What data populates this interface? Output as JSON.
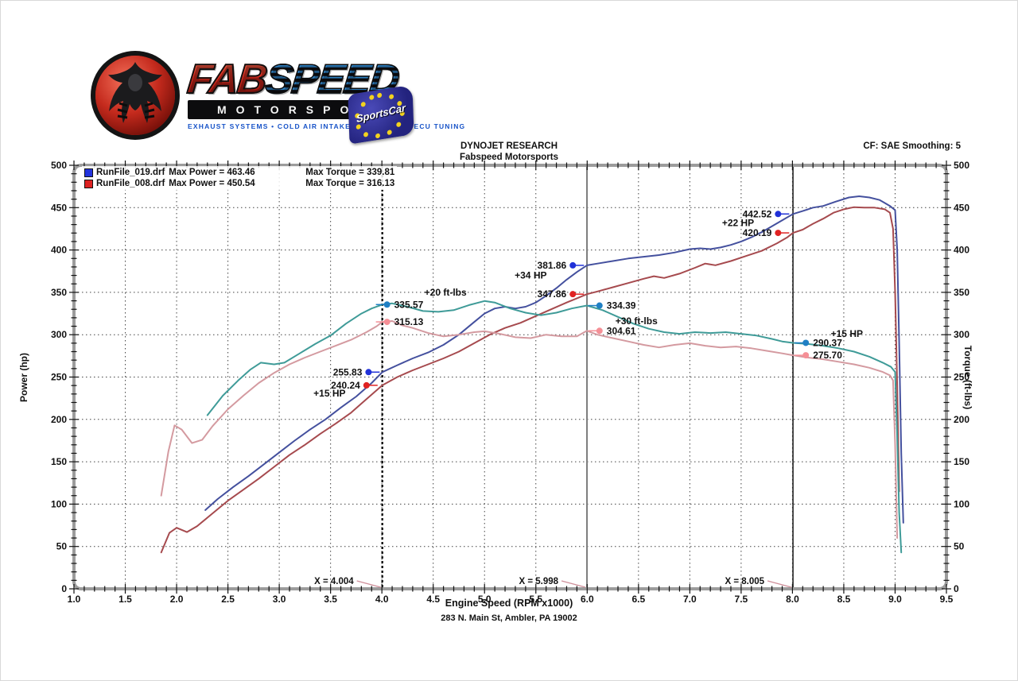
{
  "logo": {
    "fab": "FAB",
    "speed": "SPEED",
    "motorsport": "MOTORSPORT",
    "tagline": "EXHAUST SYSTEMS  •  COLD AIR INTAKES  •  HEADERS  •  ECU TUNING",
    "flag_text": "SportsCar"
  },
  "header": {
    "title": "DYNOJET RESEARCH",
    "subtitle": "Fabspeed Motorsports",
    "correction": "CF: SAE  Smoothing: 5"
  },
  "legend": {
    "rows": [
      {
        "swatch": "#2233dd",
        "file": "RunFile_019.drf",
        "power": "Max Power = 463.46",
        "torque": "Max Torque = 339.81"
      },
      {
        "swatch": "#dd2222",
        "file": "RunFile_008.drf",
        "power": "Max Power = 450.54",
        "torque": "Max Torque = 316.13"
      }
    ]
  },
  "footer": {
    "xlabel": "Engine Speed (RPM x1000)",
    "address": "283 N. Main St, Ambler, PA 19002"
  },
  "chart_data": {
    "type": "line",
    "title": "DYNOJET RESEARCH - Fabspeed Motorsports",
    "xlabel": "Engine Speed (RPM x1000)",
    "ylabel_left": "Power (hp)",
    "ylabel_right": "Torque (ft-lbs)",
    "xlim": [
      1.0,
      9.5
    ],
    "ylim": [
      0,
      500
    ],
    "x_ticks": [
      "1.0",
      "1.5",
      "2.0",
      "2.5",
      "3.0",
      "3.5",
      "4.0",
      "4.5",
      "5.0",
      "5.5",
      "6.0",
      "6.5",
      "7.0",
      "7.5",
      "8.0",
      "8.5",
      "9.0",
      "9.5"
    ],
    "y_ticks": [
      "0",
      "50",
      "100",
      "150",
      "200",
      "250",
      "300",
      "350",
      "400",
      "450",
      "500"
    ],
    "grid": "dotted",
    "legend_position": "top-left",
    "cursors": [
      {
        "x": 4.004,
        "label": "X = 4.004",
        "style": "bold-dashed"
      },
      {
        "x": 5.998,
        "label": "X = 5.998",
        "style": "solid-gray"
      },
      {
        "x": 8.005,
        "label": "X = 8.005",
        "style": "solid-black"
      }
    ],
    "series": [
      {
        "name": "RunFile_019 Power (hp)",
        "color": "#44509e",
        "axis": "hp",
        "max": 463.46,
        "points": [
          [
            2.28,
            93
          ],
          [
            2.4,
            106
          ],
          [
            2.55,
            120
          ],
          [
            2.7,
            133
          ],
          [
            2.85,
            147
          ],
          [
            3.0,
            161
          ],
          [
            3.15,
            175
          ],
          [
            3.3,
            188
          ],
          [
            3.45,
            200
          ],
          [
            3.6,
            214
          ],
          [
            3.75,
            227
          ],
          [
            3.9,
            243
          ],
          [
            4.004,
            255.83
          ],
          [
            4.15,
            264
          ],
          [
            4.3,
            272
          ],
          [
            4.45,
            279
          ],
          [
            4.6,
            288
          ],
          [
            4.75,
            300
          ],
          [
            4.9,
            315
          ],
          [
            5.0,
            325
          ],
          [
            5.1,
            331
          ],
          [
            5.2,
            333
          ],
          [
            5.3,
            331
          ],
          [
            5.4,
            333
          ],
          [
            5.5,
            338
          ],
          [
            5.6,
            346
          ],
          [
            5.7,
            355
          ],
          [
            5.8,
            365
          ],
          [
            5.9,
            374
          ],
          [
            5.998,
            381.86
          ],
          [
            6.1,
            384
          ],
          [
            6.25,
            387
          ],
          [
            6.4,
            390
          ],
          [
            6.55,
            392
          ],
          [
            6.7,
            394
          ],
          [
            6.85,
            397
          ],
          [
            7.0,
            401
          ],
          [
            7.1,
            402
          ],
          [
            7.2,
            401
          ],
          [
            7.3,
            403
          ],
          [
            7.4,
            406
          ],
          [
            7.5,
            410
          ],
          [
            7.6,
            415
          ],
          [
            7.7,
            421
          ],
          [
            7.8,
            428
          ],
          [
            7.9,
            435
          ],
          [
            8.005,
            442.52
          ],
          [
            8.1,
            446
          ],
          [
            8.2,
            450
          ],
          [
            8.3,
            452
          ],
          [
            8.42,
            457
          ],
          [
            8.55,
            462
          ],
          [
            8.65,
            463.46
          ],
          [
            8.75,
            462
          ],
          [
            8.85,
            459
          ],
          [
            8.95,
            452
          ],
          [
            9.0,
            447
          ],
          [
            9.02,
            400
          ],
          [
            9.04,
            290
          ],
          [
            9.06,
            160
          ],
          [
            9.08,
            78
          ]
        ]
      },
      {
        "name": "RunFile_008 Power (hp)",
        "color": "#a64a4e",
        "axis": "hp",
        "max": 450.54,
        "points": [
          [
            1.85,
            43
          ],
          [
            1.93,
            66
          ],
          [
            2.0,
            72
          ],
          [
            2.1,
            67
          ],
          [
            2.2,
            74
          ],
          [
            2.35,
            89
          ],
          [
            2.5,
            104
          ],
          [
            2.65,
            117
          ],
          [
            2.8,
            130
          ],
          [
            2.95,
            144
          ],
          [
            3.1,
            158
          ],
          [
            3.25,
            170
          ],
          [
            3.4,
            183
          ],
          [
            3.55,
            195
          ],
          [
            3.7,
            208
          ],
          [
            3.85,
            224
          ],
          [
            4.004,
            240.24
          ],
          [
            4.15,
            250
          ],
          [
            4.3,
            258
          ],
          [
            4.45,
            265
          ],
          [
            4.6,
            272
          ],
          [
            4.75,
            280
          ],
          [
            4.9,
            290
          ],
          [
            5.05,
            300
          ],
          [
            5.2,
            308
          ],
          [
            5.35,
            314
          ],
          [
            5.5,
            322
          ],
          [
            5.65,
            330
          ],
          [
            5.8,
            338
          ],
          [
            5.9,
            343
          ],
          [
            5.998,
            347.86
          ],
          [
            6.1,
            351
          ],
          [
            6.25,
            356
          ],
          [
            6.4,
            361
          ],
          [
            6.55,
            366
          ],
          [
            6.65,
            369
          ],
          [
            6.75,
            367
          ],
          [
            6.9,
            372
          ],
          [
            7.05,
            379
          ],
          [
            7.15,
            384
          ],
          [
            7.25,
            382
          ],
          [
            7.4,
            387
          ],
          [
            7.55,
            393
          ],
          [
            7.7,
            399
          ],
          [
            7.85,
            408
          ],
          [
            7.95,
            415
          ],
          [
            8.005,
            420.19
          ],
          [
            8.1,
            424
          ],
          [
            8.2,
            431
          ],
          [
            8.3,
            437
          ],
          [
            8.4,
            444
          ],
          [
            8.5,
            448
          ],
          [
            8.6,
            450.54
          ],
          [
            8.7,
            450
          ],
          [
            8.8,
            450
          ],
          [
            8.9,
            448
          ],
          [
            8.95,
            444
          ],
          [
            8.98,
            425
          ],
          [
            9.0,
            350
          ],
          [
            9.02,
            240
          ],
          [
            9.04,
            115
          ]
        ]
      },
      {
        "name": "RunFile_019 Torque (ft-lbs)",
        "color": "#3f9b98",
        "axis": "ft-lbs",
        "max": 339.81,
        "points": [
          [
            2.3,
            205
          ],
          [
            2.45,
            228
          ],
          [
            2.6,
            246
          ],
          [
            2.72,
            259
          ],
          [
            2.82,
            267
          ],
          [
            2.95,
            265
          ],
          [
            3.05,
            267
          ],
          [
            3.2,
            278
          ],
          [
            3.35,
            289
          ],
          [
            3.5,
            299
          ],
          [
            3.65,
            313
          ],
          [
            3.8,
            325
          ],
          [
            3.9,
            331
          ],
          [
            4.004,
            335.57
          ],
          [
            4.1,
            337
          ],
          [
            4.25,
            333
          ],
          [
            4.4,
            328
          ],
          [
            4.55,
            327
          ],
          [
            4.7,
            329
          ],
          [
            4.85,
            335
          ],
          [
            5.0,
            339.81
          ],
          [
            5.1,
            338
          ],
          [
            5.25,
            331
          ],
          [
            5.4,
            326
          ],
          [
            5.55,
            323
          ],
          [
            5.7,
            326
          ],
          [
            5.85,
            331
          ],
          [
            5.998,
            334.39
          ],
          [
            6.15,
            329
          ],
          [
            6.3,
            321
          ],
          [
            6.45,
            313
          ],
          [
            6.6,
            307
          ],
          [
            6.75,
            303
          ],
          [
            6.9,
            301
          ],
          [
            7.05,
            303
          ],
          [
            7.2,
            302
          ],
          [
            7.35,
            303
          ],
          [
            7.5,
            301
          ],
          [
            7.65,
            299
          ],
          [
            7.8,
            295
          ],
          [
            7.9,
            292
          ],
          [
            8.005,
            290.37
          ],
          [
            8.15,
            289
          ],
          [
            8.3,
            287
          ],
          [
            8.45,
            284
          ],
          [
            8.6,
            280
          ],
          [
            8.75,
            274
          ],
          [
            8.88,
            267
          ],
          [
            8.96,
            262
          ],
          [
            9.0,
            256
          ],
          [
            9.02,
            180
          ],
          [
            9.04,
            90
          ],
          [
            9.06,
            43
          ]
        ]
      },
      {
        "name": "RunFile_008 Torque (ft-lbs)",
        "color": "#d49aa0",
        "axis": "ft-lbs",
        "max": 316.13,
        "points": [
          [
            1.85,
            110
          ],
          [
            1.92,
            162
          ],
          [
            1.98,
            193
          ],
          [
            2.05,
            188
          ],
          [
            2.15,
            172
          ],
          [
            2.25,
            176
          ],
          [
            2.35,
            192
          ],
          [
            2.5,
            212
          ],
          [
            2.65,
            228
          ],
          [
            2.8,
            243
          ],
          [
            2.95,
            255
          ],
          [
            3.1,
            265
          ],
          [
            3.25,
            273
          ],
          [
            3.4,
            280
          ],
          [
            3.55,
            287
          ],
          [
            3.7,
            294
          ],
          [
            3.85,
            303
          ],
          [
            3.95,
            310
          ],
          [
            4.004,
            315.13
          ],
          [
            4.1,
            316.13
          ],
          [
            4.2,
            311
          ],
          [
            4.3,
            308
          ],
          [
            4.45,
            302
          ],
          [
            4.6,
            298
          ],
          [
            4.75,
            300
          ],
          [
            4.9,
            303
          ],
          [
            5.0,
            304
          ],
          [
            5.15,
            301
          ],
          [
            5.3,
            297
          ],
          [
            5.45,
            296
          ],
          [
            5.6,
            300
          ],
          [
            5.75,
            298
          ],
          [
            5.9,
            298
          ],
          [
            5.998,
            304.61
          ],
          [
            6.1,
            300
          ],
          [
            6.25,
            296
          ],
          [
            6.4,
            292
          ],
          [
            6.55,
            288
          ],
          [
            6.7,
            285
          ],
          [
            6.85,
            288
          ],
          [
            7.0,
            290
          ],
          [
            7.15,
            287
          ],
          [
            7.3,
            285
          ],
          [
            7.45,
            286
          ],
          [
            7.6,
            284
          ],
          [
            7.75,
            281
          ],
          [
            7.9,
            278
          ],
          [
            8.005,
            275.7
          ],
          [
            8.15,
            273
          ],
          [
            8.3,
            271
          ],
          [
            8.45,
            268
          ],
          [
            8.6,
            265
          ],
          [
            8.75,
            261
          ],
          [
            8.88,
            256
          ],
          [
            8.95,
            252
          ],
          [
            8.98,
            246
          ],
          [
            9.0,
            170
          ],
          [
            9.02,
            60
          ]
        ]
      }
    ],
    "markers": [
      {
        "rpm": 3.87,
        "val": 255.83,
        "color": "#2031d8",
        "label": "255.83",
        "side": "left"
      },
      {
        "rpm": 3.85,
        "val": 240.24,
        "color": "#e02222",
        "label": "240.24",
        "side": "left"
      },
      {
        "rpm": 4.05,
        "val": 335.57,
        "color": "#1f7fc4",
        "label": "335.57",
        "side": "right"
      },
      {
        "rpm": 4.05,
        "val": 315.13,
        "color": "#f58f96",
        "label": "315.13",
        "side": "right"
      },
      {
        "rpm": 5.86,
        "val": 381.86,
        "color": "#2031d8",
        "label": "381.86",
        "side": "left"
      },
      {
        "rpm": 5.86,
        "val": 347.86,
        "color": "#e02222",
        "label": "347.86",
        "side": "left"
      },
      {
        "rpm": 6.12,
        "val": 334.39,
        "color": "#1f7fc4",
        "label": "334.39",
        "side": "right"
      },
      {
        "rpm": 6.12,
        "val": 304.61,
        "color": "#f58f96",
        "label": "304.61",
        "side": "right"
      },
      {
        "rpm": 7.86,
        "val": 442.52,
        "color": "#2031d8",
        "label": "442.52",
        "side": "left"
      },
      {
        "rpm": 7.86,
        "val": 420.19,
        "color": "#e02222",
        "label": "420.19",
        "side": "left"
      },
      {
        "rpm": 8.13,
        "val": 290.37,
        "color": "#1f7fc4",
        "label": "290.37",
        "side": "right"
      },
      {
        "rpm": 8.13,
        "val": 275.7,
        "color": "#f58f96",
        "label": "275.70",
        "side": "right"
      }
    ],
    "notes": [
      {
        "rpm": 3.49,
        "val": 231,
        "text": "+15 HP"
      },
      {
        "rpm": 4.62,
        "val": 350,
        "text": "+20 ft-lbs"
      },
      {
        "rpm": 5.45,
        "val": 370,
        "text": "+34 HP"
      },
      {
        "rpm": 6.48,
        "val": 316,
        "text": "+30 ft-lbs"
      },
      {
        "rpm": 7.47,
        "val": 432,
        "text": "+22 HP"
      },
      {
        "rpm": 8.53,
        "val": 301,
        "text": "+15 HP"
      }
    ]
  }
}
